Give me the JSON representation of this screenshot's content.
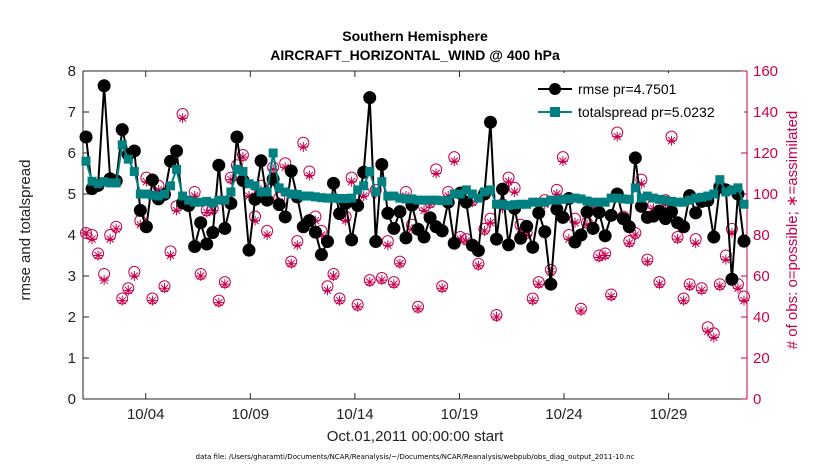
{
  "chart_data": {
    "type": "line",
    "title": "Southern Hemisphere",
    "subtitle": "AIRCRAFT_HORIZONTAL_WIND @ 400 hPa",
    "xlabel": "Oct.01,2011 00:00:00 start",
    "ylabel_left": "rmse and totalspread",
    "ylabel_right": "# of obs: o=possible; ∗=assimilated",
    "footer": "data file: /Users/gharamti/Documents/NCAR/Reanalysis/~/Documents/NCAR/Reanalysis/webpub/obs_diag_output_2011-10.nc",
    "xlim": [
      0,
      31.75
    ],
    "x_ticks": [
      3,
      8,
      13,
      18,
      23,
      28
    ],
    "x_tick_labels": [
      "10/04",
      "10/09",
      "10/14",
      "10/19",
      "10/24",
      "10/29"
    ],
    "ylim_left": [
      0,
      8
    ],
    "y_ticks_left": [
      0,
      1,
      2,
      3,
      4,
      5,
      6,
      7,
      8
    ],
    "ylim_right": [
      0,
      160
    ],
    "y_ticks_right": [
      0,
      20,
      40,
      60,
      80,
      100,
      120,
      140,
      160
    ],
    "grid": false,
    "legend_position": "top-right",
    "colors": {
      "rmse": "#000000",
      "totalspread": "#008080",
      "obs": "#c8004f"
    },
    "series": [
      {
        "name": "rmse pr=4.7501",
        "axis": "left",
        "marker": "circle",
        "values": [
          6.39,
          5.13,
          5.21,
          7.64,
          5.37,
          5.32,
          6.57,
          5.96,
          6.05,
          4.6,
          4.2,
          5.34,
          4.88,
          4.99,
          5.8,
          6.05,
          4.78,
          4.72,
          3.72,
          4.3,
          3.78,
          4.06,
          5.7,
          4.16,
          4.77,
          6.39,
          5.33,
          3.63,
          4.87,
          5.81,
          4.85,
          5.36,
          4.74,
          4.44,
          5.56,
          4.93,
          4.2,
          4.35,
          4.07,
          3.52,
          3.84,
          5.26,
          4.52,
          4.77,
          3.88,
          4.72,
          5.53,
          7.35,
          3.84,
          5.72,
          4.53,
          4.16,
          4.57,
          3.93,
          4.73,
          4.14,
          3.95,
          4.42,
          4.2,
          4.1,
          4.8,
          3.8,
          5.02,
          4.8,
          3.75,
          3.62,
          5.0,
          6.75,
          3.9,
          5.12,
          3.76,
          4.65,
          3.92,
          4.21,
          3.7,
          4.54,
          4.08,
          2.8,
          4.63,
          4.43,
          4.89,
          3.83,
          4.0,
          4.56,
          4.16,
          4.55,
          3.98,
          4.48,
          5.0,
          4.4,
          4.2,
          5.88,
          4.7,
          4.43,
          4.46,
          4.58,
          4.4,
          4.57,
          4.3,
          4.2,
          4.96,
          4.54,
          4.82,
          4.84,
          3.95,
          5.17,
          5.1,
          2.92,
          5.0,
          3.85
        ]
      },
      {
        "name": "totalspread pr=5.0232",
        "axis": "left",
        "marker": "square",
        "values": [
          5.8,
          5.31,
          5.25,
          5.3,
          5.27,
          5.27,
          6.2,
          5.85,
          5.55,
          5.0,
          5.0,
          4.97,
          4.95,
          5.0,
          5.2,
          5.6,
          4.95,
          4.85,
          4.8,
          4.8,
          4.82,
          4.78,
          4.85,
          4.85,
          5.05,
          5.6,
          5.55,
          5.25,
          5.2,
          5.05,
          5.05,
          6.0,
          5.15,
          5.05,
          5.0,
          4.99,
          4.95,
          4.95,
          4.93,
          4.91,
          4.9,
          4.9,
          4.89,
          4.89,
          4.9,
          5.1,
          5.2,
          5.55,
          5.05,
          5.3,
          4.95,
          4.95,
          4.9,
          4.88,
          4.88,
          4.85,
          4.85,
          4.85,
          4.85,
          4.84,
          4.84,
          5.0,
          5.0,
          5.1,
          5.0,
          4.9,
          5.05,
          5.1,
          4.75,
          4.75,
          4.72,
          4.74,
          4.75,
          4.75,
          4.8,
          4.8,
          4.8,
          4.85,
          4.85,
          4.87,
          4.88,
          4.9,
          4.88,
          4.83,
          4.8,
          4.8,
          4.8,
          4.9,
          4.9,
          4.88,
          4.87,
          5.15,
          4.9,
          4.95,
          4.9,
          4.87,
          4.85,
          4.82,
          4.8,
          4.8,
          4.85,
          4.9,
          4.92,
          4.95,
          5.0,
          5.35,
          5.05,
          5.1,
          5.15,
          4.75
        ]
      },
      {
        "name": "obs possible",
        "axis": "right",
        "marker": "circle-open",
        "values": [
          81,
          80,
          71,
          61,
          80,
          84,
          49,
          54,
          62,
          87,
          108,
          49,
          104,
          55,
          72,
          94,
          139,
          96,
          101,
          61,
          92,
          93,
          48,
          57,
          108,
          114,
          119,
          101,
          89,
          104,
          82,
          113,
          98,
          115,
          67,
          77,
          125,
          111,
          89,
          82,
          55,
          61,
          49,
          89,
          108,
          46,
          101,
          58,
          102,
          59,
          77,
          57,
          67,
          101,
          85,
          45,
          94,
          96,
          112,
          55,
          101,
          118,
          79,
          78,
          97,
          66,
          83,
          88,
          41,
          95,
          108,
          103,
          85,
          81,
          49,
          57,
          97,
          63,
          102,
          118,
          80,
          88,
          44,
          86,
          95,
          70,
          71,
          51,
          130,
          89,
          77,
          81,
          107,
          68,
          95,
          57,
          97,
          128,
          79,
          49,
          56,
          78,
          54,
          35,
          32,
          56,
          70,
          83,
          56,
          50
        ]
      },
      {
        "name": "obs assimilated",
        "axis": "right",
        "marker": "star",
        "values": [
          81,
          78,
          70,
          58,
          78,
          83,
          48,
          53,
          60,
          85,
          106,
          48,
          102,
          54,
          70,
          92,
          137,
          95,
          99,
          60,
          91,
          92,
          47,
          56,
          107,
          112,
          118,
          99,
          87,
          102,
          80,
          112,
          96,
          113,
          66,
          75,
          123,
          109,
          87,
          80,
          53,
          60,
          48,
          87,
          106,
          45,
          99,
          57,
          100,
          58,
          75,
          56,
          66,
          99,
          83,
          44,
          92,
          95,
          110,
          54,
          99,
          116,
          78,
          77,
          96,
          65,
          82,
          86,
          40,
          93,
          106,
          101,
          83,
          80,
          48,
          56,
          95,
          62,
          100,
          116,
          78,
          86,
          43,
          85,
          93,
          69,
          70,
          50,
          128,
          87,
          76,
          80,
          105,
          67,
          93,
          56,
          95,
          126,
          78,
          48,
          55,
          76,
          53,
          33,
          30,
          55,
          68,
          81,
          54,
          48
        ]
      }
    ]
  }
}
